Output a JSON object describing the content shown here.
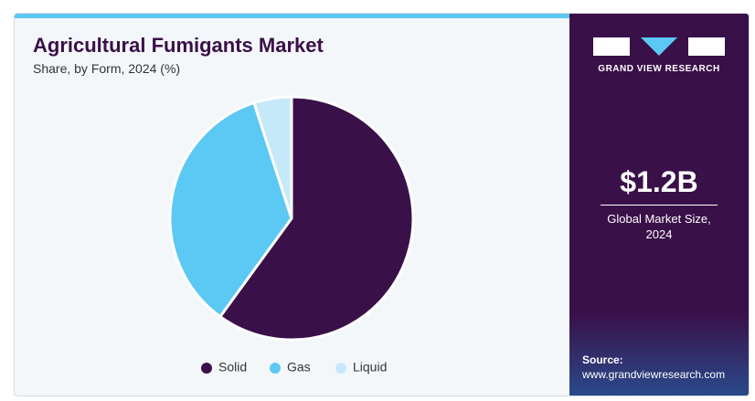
{
  "chart_data": {
    "type": "pie",
    "title": "Agricultural Fumigants Market",
    "subtitle": "Share, by Form, 2024 (%)",
    "categories": [
      "Solid",
      "Gas",
      "Liquid"
    ],
    "values": [
      60,
      35,
      5
    ],
    "colors": [
      "#3a1049",
      "#5cc8f4",
      "#c6e9fa"
    ],
    "legend": "bottom"
  },
  "sidebar": {
    "brand": "GRAND VIEW RESEARCH",
    "market_size": "$1.2B",
    "market_size_label": "Global Market Size, 2024",
    "source_label": "Source:",
    "source_url": "www.grandviewresearch.com"
  }
}
